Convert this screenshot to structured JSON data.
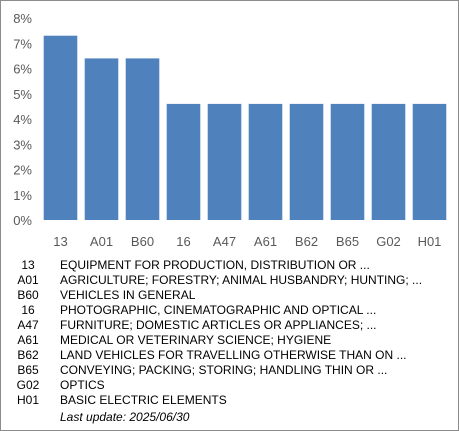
{
  "chart_data": {
    "type": "bar",
    "categories": [
      "13",
      "A01",
      "B60",
      "16",
      "A47",
      "A61",
      "B62",
      "B65",
      "G02",
      "H01"
    ],
    "values": [
      7.3,
      6.4,
      6.4,
      4.6,
      4.6,
      4.6,
      4.6,
      4.6,
      4.6,
      4.6
    ],
    "y_ticks": [
      "0%",
      "1%",
      "2%",
      "3%",
      "4%",
      "5%",
      "6%",
      "7%",
      "8%"
    ],
    "ylim": [
      0,
      8
    ],
    "grid": false,
    "bar_color": "#4f81bd"
  },
  "legend": [
    {
      "code": "13",
      "text": "EQUIPMENT FOR PRODUCTION, DISTRIBUTION OR ..."
    },
    {
      "code": "A01",
      "text": "AGRICULTURE; FORESTRY; ANIMAL HUSBANDRY; HUNTING; ..."
    },
    {
      "code": "B60",
      "text": "VEHICLES IN GENERAL"
    },
    {
      "code": "16",
      "text": "PHOTOGRAPHIC, CINEMATOGRAPHIC AND OPTICAL ..."
    },
    {
      "code": "A47",
      "text": "FURNITURE; DOMESTIC ARTICLES OR APPLIANCES; ..."
    },
    {
      "code": "A61",
      "text": "MEDICAL OR VETERINARY SCIENCE; HYGIENE"
    },
    {
      "code": "B62",
      "text": "LAND VEHICLES FOR TRAVELLING OTHERWISE THAN ON ..."
    },
    {
      "code": "B65",
      "text": "CONVEYING; PACKING; STORING; HANDLING THIN OR ..."
    },
    {
      "code": "G02",
      "text": "OPTICS"
    },
    {
      "code": "H01",
      "text": "BASIC ELECTRIC ELEMENTS"
    }
  ],
  "last_update": "Last update:  2025/06/30"
}
